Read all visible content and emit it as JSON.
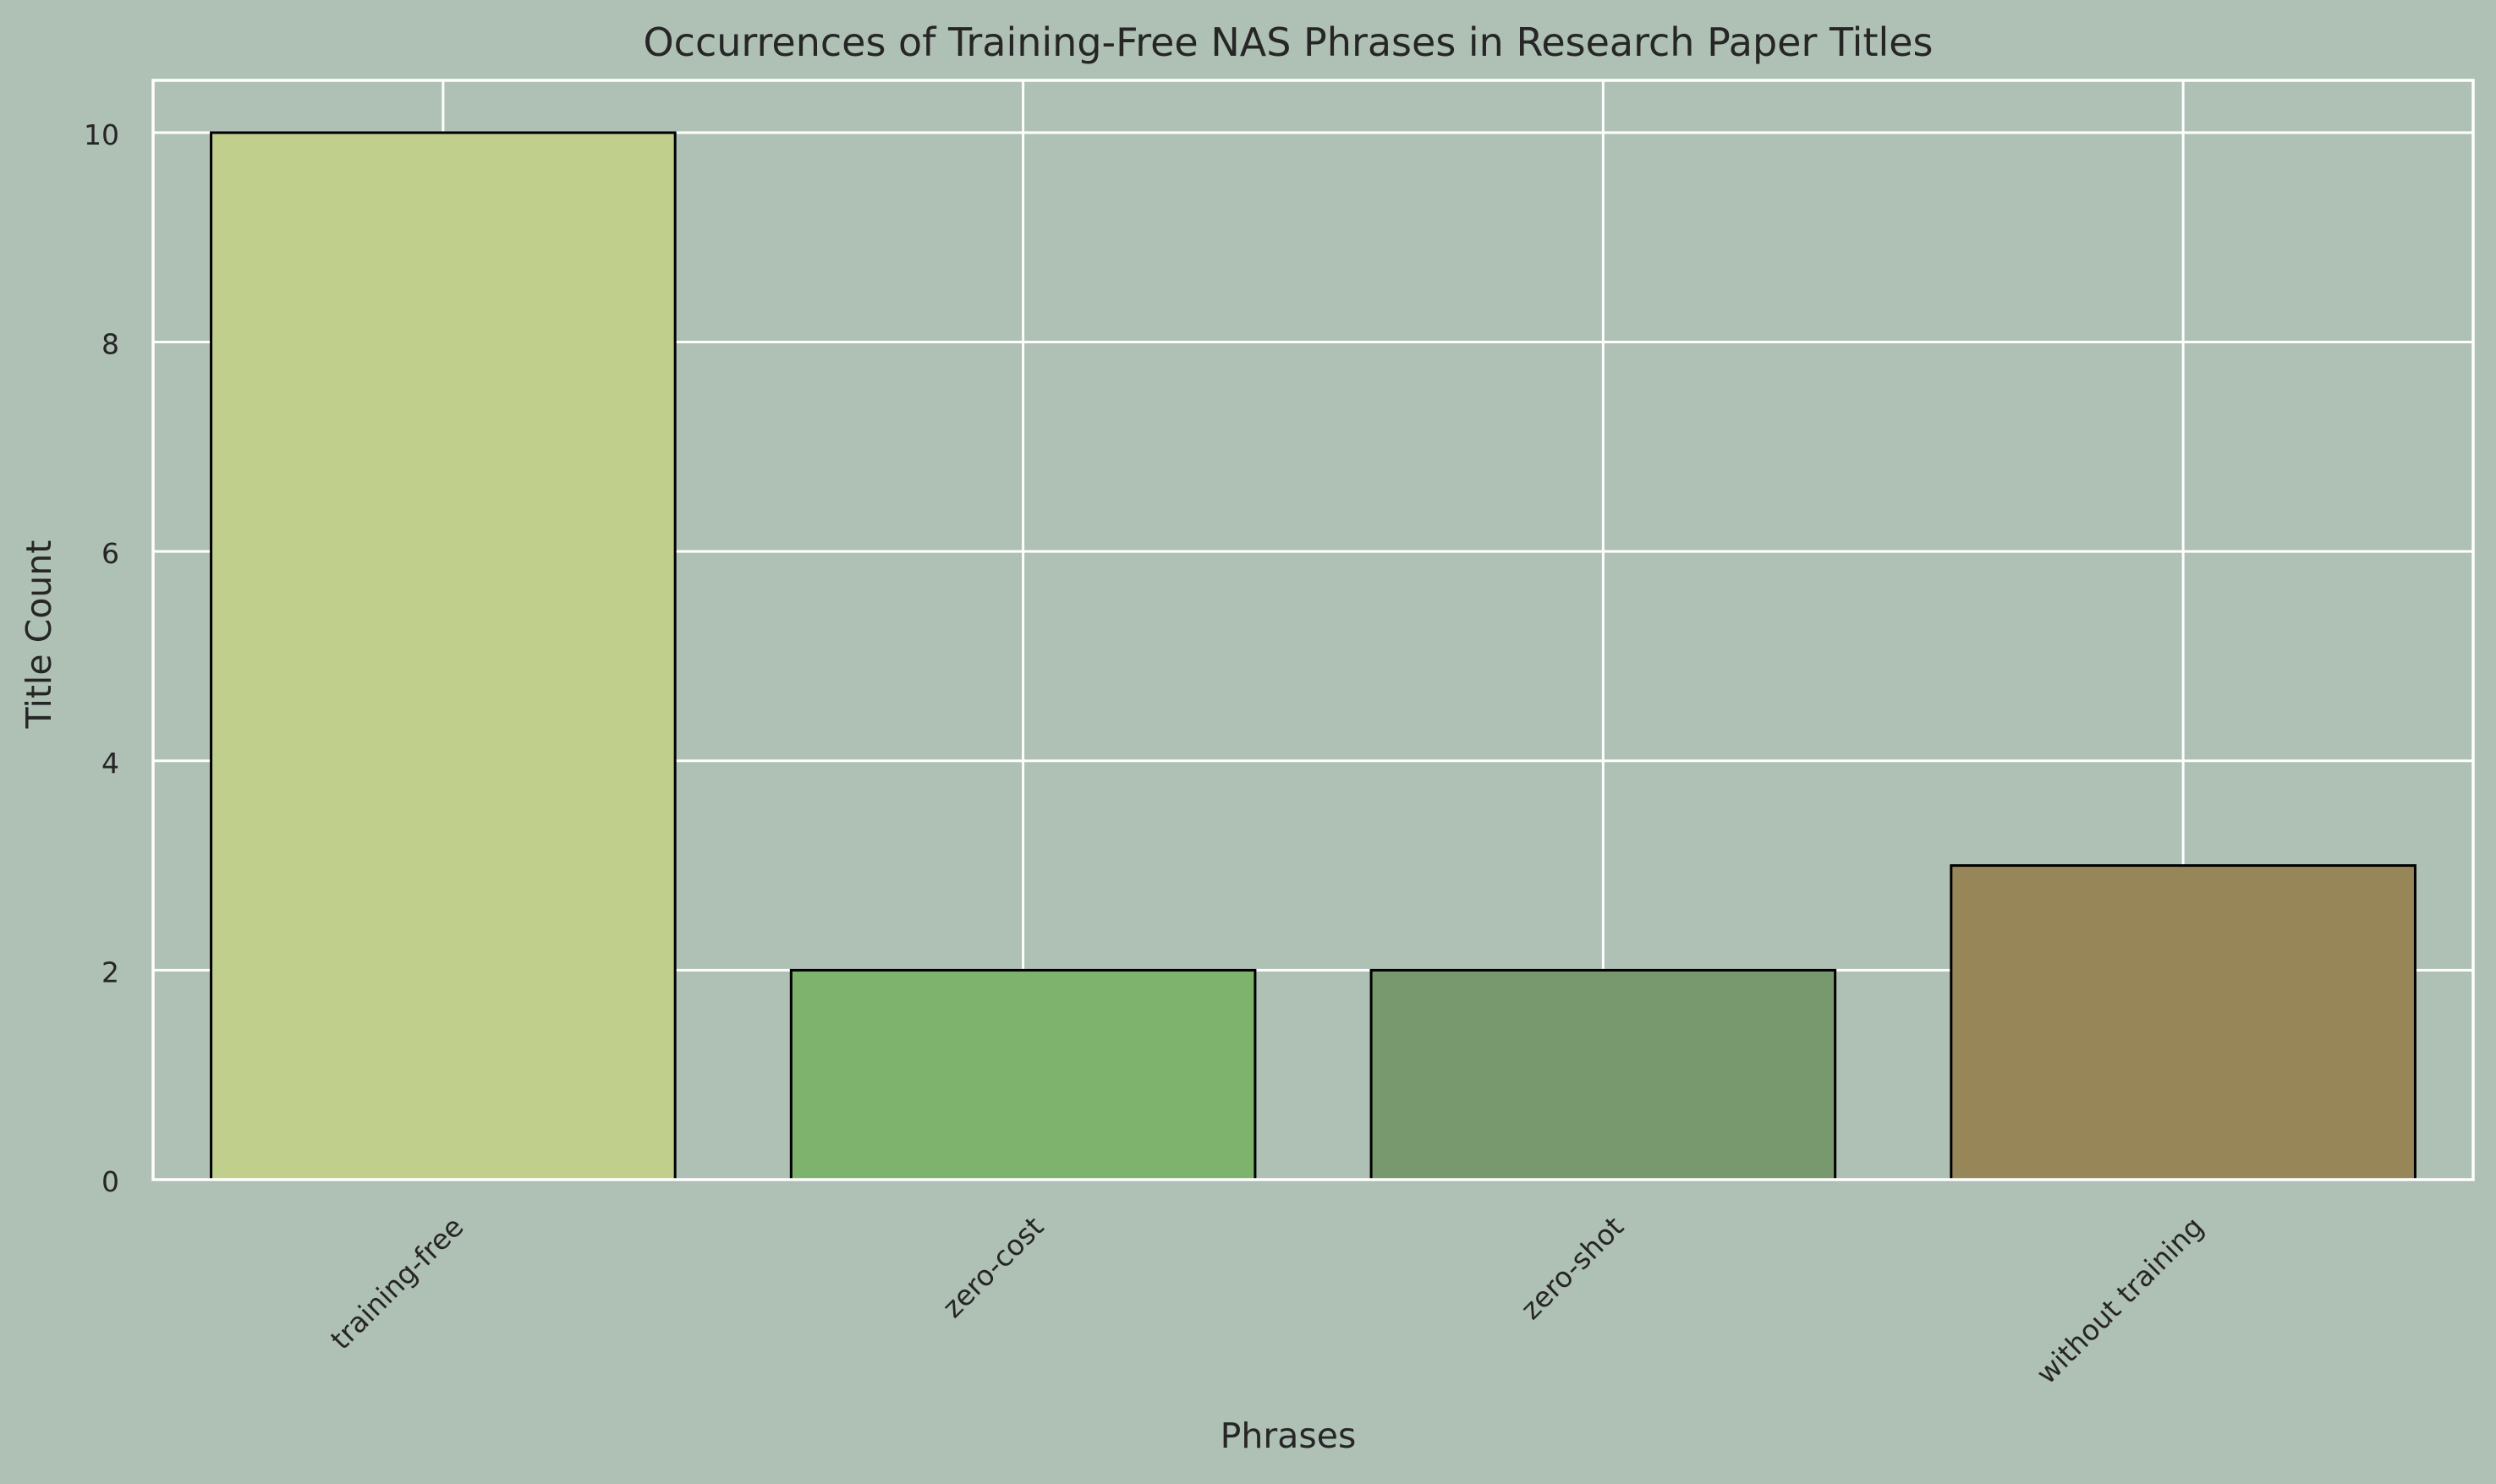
{
  "chart_data": {
    "type": "bar",
    "title": "Occurrences of Training-Free NAS Phrases in Research Paper Titles",
    "xlabel": "Phrases",
    "ylabel": "Title Count",
    "categories": [
      "training-free",
      "zero-cost",
      "zero-shot",
      "without training"
    ],
    "values": [
      10,
      2,
      2,
      3
    ],
    "bar_colors": [
      "#c1cf8d",
      "#7db36c",
      "#78986d",
      "#978658"
    ],
    "bar_edge_color": "#000000",
    "yticks": [
      "0",
      "2",
      "4",
      "6",
      "8",
      "10"
    ],
    "ylim": [
      0,
      10.5
    ],
    "grid": true,
    "background_color": "#afc0b4",
    "grid_color": "#ffffff"
  }
}
